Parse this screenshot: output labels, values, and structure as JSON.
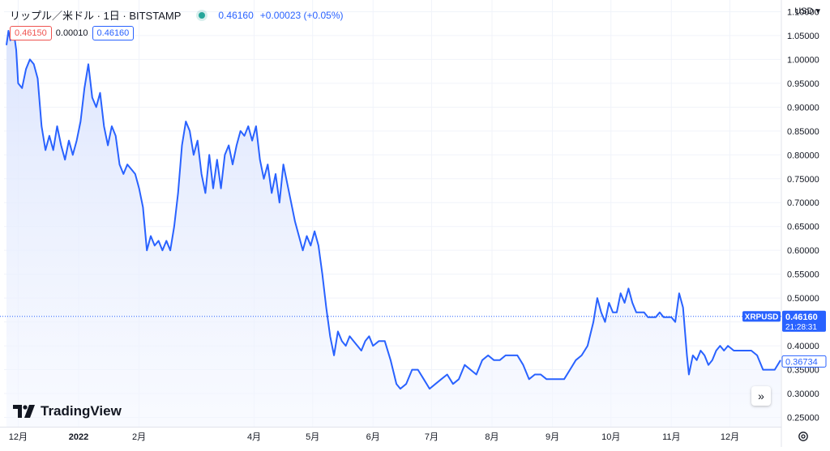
{
  "header": {
    "symbol_title": "リップル／米ドル · 1日 · BITSTAMP",
    "last_price": "0.46160",
    "change": "+0.00023 (+0.05%)",
    "status_color": "#26a69a"
  },
  "quote": {
    "bid": "0.46150",
    "spread": "0.00010",
    "ask": "0.46160"
  },
  "currency": "USD",
  "brand": "TradingView",
  "price_tag": {
    "symbol": "XRPUSD",
    "price": "0.46160",
    "countdown": "21:28:31"
  },
  "crosshair_price": "0.36734",
  "colors": {
    "line": "#2962ff",
    "area_top": "#dbe4fd",
    "bid": "#ef5350",
    "ask": "#2962ff",
    "tag_bg": "#2962ff"
  },
  "chart_data": {
    "type": "area",
    "title": "リップル／米ドル · 1日 · BITSTAMP",
    "xlabel": "",
    "ylabel": "",
    "ylim": [
      0.2305,
      1.1245
    ],
    "grid": true,
    "y_ticks": [
      "1.10000",
      "1.05000",
      "1.00000",
      "0.95000",
      "0.90000",
      "0.85000",
      "0.80000",
      "0.75000",
      "0.70000",
      "0.65000",
      "0.60000",
      "0.55000",
      "0.50000",
      "0.45000",
      "0.40000",
      "0.35000",
      "0.30000",
      "0.25000"
    ],
    "y_tick_values": [
      1.1,
      1.05,
      1.0,
      0.95,
      0.9,
      0.85,
      0.8,
      0.75,
      0.7,
      0.65,
      0.6,
      0.55,
      0.5,
      0.45,
      0.4,
      0.35,
      0.3,
      0.25
    ],
    "x_ticks": [
      {
        "label": "12月",
        "date": "2021-12-01",
        "bold": false
      },
      {
        "label": "2022",
        "date": "2022-01-01",
        "bold": true
      },
      {
        "label": "2月",
        "date": "2022-02-01",
        "bold": false
      },
      {
        "label": "4月",
        "date": "2022-04-01",
        "bold": false
      },
      {
        "label": "5月",
        "date": "2022-05-01",
        "bold": false
      },
      {
        "label": "6月",
        "date": "2022-06-01",
        "bold": false
      },
      {
        "label": "7月",
        "date": "2022-07-01",
        "bold": false
      },
      {
        "label": "8月",
        "date": "2022-08-01",
        "bold": false
      },
      {
        "label": "9月",
        "date": "2022-09-01",
        "bold": false
      },
      {
        "label": "10月",
        "date": "2022-10-01",
        "bold": false
      },
      {
        "label": "11月",
        "date": "2022-11-01",
        "bold": false
      },
      {
        "label": "12月",
        "date": "2022-12-01",
        "bold": false
      }
    ],
    "x_range": [
      "2021-11-25",
      "2022-12-27"
    ],
    "series": [
      {
        "values": [
          [
            "2021-11-25",
            1.03
          ],
          [
            "2021-11-26",
            1.06
          ],
          [
            "2021-11-27",
            1.04
          ],
          [
            "2021-11-28",
            1.06
          ],
          [
            "2021-11-29",
            1.05
          ],
          [
            "2021-11-30",
            1.02
          ],
          [
            "2021-12-01",
            0.95
          ],
          [
            "2021-12-03",
            0.94
          ],
          [
            "2021-12-05",
            0.98
          ],
          [
            "2021-12-07",
            1.0
          ],
          [
            "2021-12-09",
            0.99
          ],
          [
            "2021-12-11",
            0.96
          ],
          [
            "2021-12-13",
            0.86
          ],
          [
            "2021-12-15",
            0.81
          ],
          [
            "2021-12-17",
            0.84
          ],
          [
            "2021-12-19",
            0.81
          ],
          [
            "2021-12-21",
            0.86
          ],
          [
            "2021-12-23",
            0.82
          ],
          [
            "2021-12-25",
            0.79
          ],
          [
            "2021-12-27",
            0.83
          ],
          [
            "2021-12-29",
            0.8
          ],
          [
            "2021-12-31",
            0.83
          ],
          [
            "2022-01-02",
            0.87
          ],
          [
            "2022-01-04",
            0.94
          ],
          [
            "2022-01-06",
            0.99
          ],
          [
            "2022-01-08",
            0.92
          ],
          [
            "2022-01-10",
            0.9
          ],
          [
            "2022-01-12",
            0.93
          ],
          [
            "2022-01-14",
            0.86
          ],
          [
            "2022-01-16",
            0.82
          ],
          [
            "2022-01-18",
            0.86
          ],
          [
            "2022-01-20",
            0.84
          ],
          [
            "2022-01-22",
            0.78
          ],
          [
            "2022-01-24",
            0.76
          ],
          [
            "2022-01-26",
            0.78
          ],
          [
            "2022-01-28",
            0.77
          ],
          [
            "2022-01-30",
            0.76
          ],
          [
            "2022-02-01",
            0.73
          ],
          [
            "2022-02-03",
            0.69
          ],
          [
            "2022-02-05",
            0.6
          ],
          [
            "2022-02-07",
            0.63
          ],
          [
            "2022-02-09",
            0.61
          ],
          [
            "2022-02-11",
            0.62
          ],
          [
            "2022-02-13",
            0.6
          ],
          [
            "2022-02-15",
            0.62
          ],
          [
            "2022-02-17",
            0.6
          ],
          [
            "2022-02-19",
            0.65
          ],
          [
            "2022-02-21",
            0.72
          ],
          [
            "2022-02-23",
            0.82
          ],
          [
            "2022-02-25",
            0.87
          ],
          [
            "2022-02-27",
            0.85
          ],
          [
            "2022-03-01",
            0.8
          ],
          [
            "2022-03-03",
            0.83
          ],
          [
            "2022-03-05",
            0.76
          ],
          [
            "2022-03-07",
            0.72
          ],
          [
            "2022-03-09",
            0.8
          ],
          [
            "2022-03-11",
            0.73
          ],
          [
            "2022-03-13",
            0.79
          ],
          [
            "2022-03-15",
            0.73
          ],
          [
            "2022-03-17",
            0.8
          ],
          [
            "2022-03-19",
            0.82
          ],
          [
            "2022-03-21",
            0.78
          ],
          [
            "2022-03-23",
            0.82
          ],
          [
            "2022-03-25",
            0.85
          ],
          [
            "2022-03-27",
            0.84
          ],
          [
            "2022-03-29",
            0.86
          ],
          [
            "2022-03-31",
            0.83
          ],
          [
            "2022-04-02",
            0.86
          ],
          [
            "2022-04-04",
            0.79
          ],
          [
            "2022-04-06",
            0.75
          ],
          [
            "2022-04-08",
            0.78
          ],
          [
            "2022-04-10",
            0.72
          ],
          [
            "2022-04-12",
            0.76
          ],
          [
            "2022-04-14",
            0.7
          ],
          [
            "2022-04-16",
            0.78
          ],
          [
            "2022-04-18",
            0.74
          ],
          [
            "2022-04-20",
            0.7
          ],
          [
            "2022-04-22",
            0.66
          ],
          [
            "2022-04-24",
            0.63
          ],
          [
            "2022-04-26",
            0.6
          ],
          [
            "2022-04-28",
            0.63
          ],
          [
            "2022-04-30",
            0.61
          ],
          [
            "2022-05-02",
            0.64
          ],
          [
            "2022-05-04",
            0.61
          ],
          [
            "2022-05-06",
            0.55
          ],
          [
            "2022-05-08",
            0.48
          ],
          [
            "2022-05-10",
            0.42
          ],
          [
            "2022-05-12",
            0.38
          ],
          [
            "2022-05-14",
            0.43
          ],
          [
            "2022-05-16",
            0.41
          ],
          [
            "2022-05-18",
            0.4
          ],
          [
            "2022-05-20",
            0.42
          ],
          [
            "2022-05-22",
            0.41
          ],
          [
            "2022-05-24",
            0.4
          ],
          [
            "2022-05-26",
            0.39
          ],
          [
            "2022-05-28",
            0.41
          ],
          [
            "2022-05-30",
            0.42
          ],
          [
            "2022-06-01",
            0.4
          ],
          [
            "2022-06-04",
            0.41
          ],
          [
            "2022-06-07",
            0.41
          ],
          [
            "2022-06-10",
            0.37
          ],
          [
            "2022-06-13",
            0.32
          ],
          [
            "2022-06-15",
            0.31
          ],
          [
            "2022-06-18",
            0.32
          ],
          [
            "2022-06-21",
            0.35
          ],
          [
            "2022-06-24",
            0.35
          ],
          [
            "2022-06-27",
            0.33
          ],
          [
            "2022-06-30",
            0.31
          ],
          [
            "2022-07-03",
            0.32
          ],
          [
            "2022-07-06",
            0.33
          ],
          [
            "2022-07-09",
            0.34
          ],
          [
            "2022-07-12",
            0.32
          ],
          [
            "2022-07-15",
            0.33
          ],
          [
            "2022-07-18",
            0.36
          ],
          [
            "2022-07-21",
            0.35
          ],
          [
            "2022-07-24",
            0.34
          ],
          [
            "2022-07-27",
            0.37
          ],
          [
            "2022-07-30",
            0.38
          ],
          [
            "2022-08-02",
            0.37
          ],
          [
            "2022-08-05",
            0.37
          ],
          [
            "2022-08-08",
            0.38
          ],
          [
            "2022-08-11",
            0.38
          ],
          [
            "2022-08-14",
            0.38
          ],
          [
            "2022-08-17",
            0.36
          ],
          [
            "2022-08-20",
            0.33
          ],
          [
            "2022-08-23",
            0.34
          ],
          [
            "2022-08-26",
            0.34
          ],
          [
            "2022-08-29",
            0.33
          ],
          [
            "2022-09-01",
            0.33
          ],
          [
            "2022-09-04",
            0.33
          ],
          [
            "2022-09-07",
            0.33
          ],
          [
            "2022-09-10",
            0.35
          ],
          [
            "2022-09-13",
            0.37
          ],
          [
            "2022-09-16",
            0.38
          ],
          [
            "2022-09-19",
            0.4
          ],
          [
            "2022-09-22",
            0.45
          ],
          [
            "2022-09-24",
            0.5
          ],
          [
            "2022-09-26",
            0.47
          ],
          [
            "2022-09-28",
            0.45
          ],
          [
            "2022-09-30",
            0.49
          ],
          [
            "2022-10-02",
            0.47
          ],
          [
            "2022-10-04",
            0.47
          ],
          [
            "2022-10-06",
            0.51
          ],
          [
            "2022-10-08",
            0.49
          ],
          [
            "2022-10-10",
            0.52
          ],
          [
            "2022-10-12",
            0.49
          ],
          [
            "2022-10-14",
            0.47
          ],
          [
            "2022-10-16",
            0.47
          ],
          [
            "2022-10-18",
            0.47
          ],
          [
            "2022-10-20",
            0.46
          ],
          [
            "2022-10-22",
            0.46
          ],
          [
            "2022-10-24",
            0.46
          ],
          [
            "2022-10-26",
            0.47
          ],
          [
            "2022-10-28",
            0.46
          ],
          [
            "2022-10-30",
            0.46
          ],
          [
            "2022-11-01",
            0.46
          ],
          [
            "2022-11-03",
            0.45
          ],
          [
            "2022-11-05",
            0.51
          ],
          [
            "2022-11-07",
            0.48
          ],
          [
            "2022-11-09",
            0.38
          ],
          [
            "2022-11-10",
            0.34
          ],
          [
            "2022-11-12",
            0.38
          ],
          [
            "2022-11-14",
            0.37
          ],
          [
            "2022-11-16",
            0.39
          ],
          [
            "2022-11-18",
            0.38
          ],
          [
            "2022-11-20",
            0.36
          ],
          [
            "2022-11-22",
            0.37
          ],
          [
            "2022-11-24",
            0.39
          ],
          [
            "2022-11-26",
            0.4
          ],
          [
            "2022-11-28",
            0.39
          ],
          [
            "2022-11-30",
            0.4
          ],
          [
            "2022-12-03",
            0.39
          ],
          [
            "2022-12-06",
            0.39
          ],
          [
            "2022-12-09",
            0.39
          ],
          [
            "2022-12-12",
            0.39
          ],
          [
            "2022-12-15",
            0.38
          ],
          [
            "2022-12-18",
            0.35
          ],
          [
            "2022-12-21",
            0.35
          ],
          [
            "2022-12-24",
            0.35
          ],
          [
            "2022-12-27",
            0.37
          ]
        ]
      }
    ]
  }
}
